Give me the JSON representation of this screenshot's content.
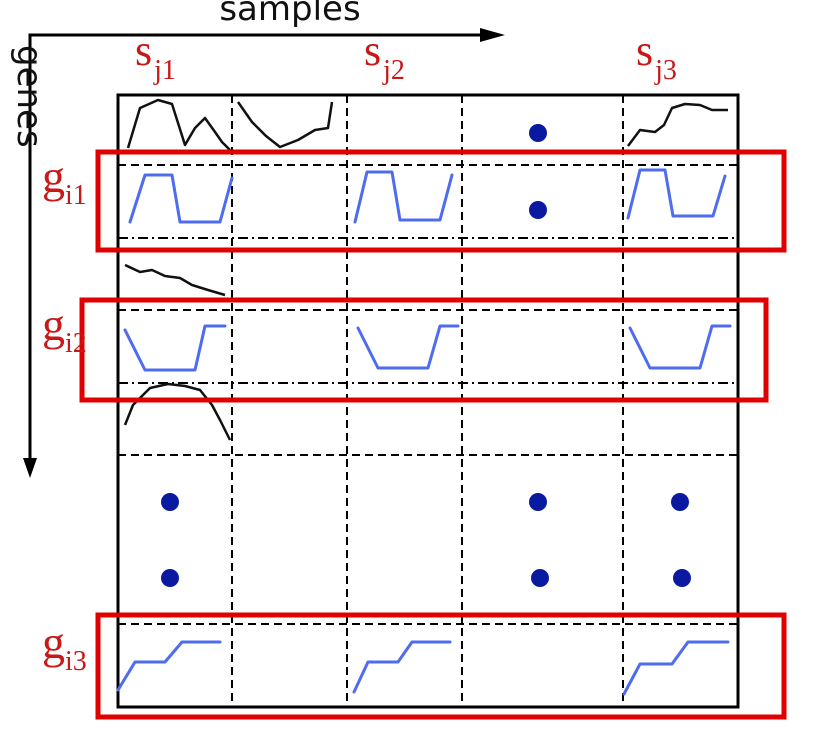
{
  "axes": {
    "x_label": "samples",
    "y_label": "genes"
  },
  "sample_labels": [
    {
      "main": "s",
      "sub": "j1"
    },
    {
      "main": "s",
      "sub": "j2"
    },
    {
      "main": "s",
      "sub": "j3"
    }
  ],
  "gene_labels": [
    {
      "main": "g",
      "sub": "i1"
    },
    {
      "main": "g",
      "sub": "i2"
    },
    {
      "main": "g",
      "sub": "i3"
    }
  ],
  "colors": {
    "grid": "#000000",
    "gene_box": "#e00000",
    "label": "#c81818",
    "pattern_line": "#4e6cf0",
    "ellipsis_dot": "#0a1aa0",
    "profile_line": "#111111"
  }
}
